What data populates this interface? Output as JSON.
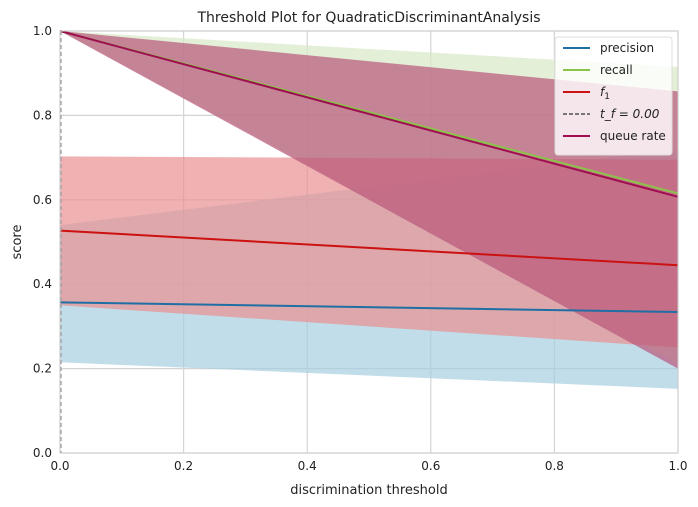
{
  "chart_data": {
    "type": "line",
    "title": "Threshold Plot for QuadraticDiscriminantAnalysis",
    "xlabel": "discrimination threshold",
    "ylabel": "score",
    "xlim": [
      0,
      1
    ],
    "ylim": [
      0,
      1
    ],
    "xticks": [
      "0.0",
      "0.2",
      "0.4",
      "0.6",
      "0.8",
      "1.0"
    ],
    "yticks": [
      "0.0",
      "0.2",
      "0.4",
      "0.6",
      "0.8",
      "1.0"
    ],
    "grid": true,
    "legend_position": "top-right",
    "threshold_label": "t_f = 0.00",
    "threshold_value": 0.0,
    "series": [
      {
        "name": "precision",
        "color": "#1f6fa5",
        "band_color": "#a6cfe0",
        "x": [
          0,
          1
        ],
        "values": [
          0.357,
          0.334
        ],
        "lower": [
          0.215,
          0.152
        ],
        "upper": [
          0.54,
          0.72
        ]
      },
      {
        "name": "recall",
        "color": "#8bc34a",
        "band_color": "#d9e8c8",
        "x": [
          0,
          1
        ],
        "values": [
          1.0,
          0.615
        ],
        "lower": [
          1.0,
          0.21
        ],
        "upper": [
          1.0,
          0.915
        ]
      },
      {
        "name": "f_1",
        "legend_base": "f",
        "legend_sub": "1",
        "color": "#cc1111",
        "band_color": "#e89090",
        "x": [
          0,
          1
        ],
        "values": [
          0.527,
          0.445
        ],
        "lower": [
          0.35,
          0.25
        ],
        "upper": [
          0.703,
          0.695
        ]
      },
      {
        "name": "queue rate",
        "color": "#9e0e50",
        "band_color": "#b8567a",
        "x": [
          0,
          1
        ],
        "values": [
          1.0,
          0.607
        ],
        "lower": [
          1.0,
          0.2
        ],
        "upper": [
          1.0,
          0.857
        ]
      }
    ]
  }
}
